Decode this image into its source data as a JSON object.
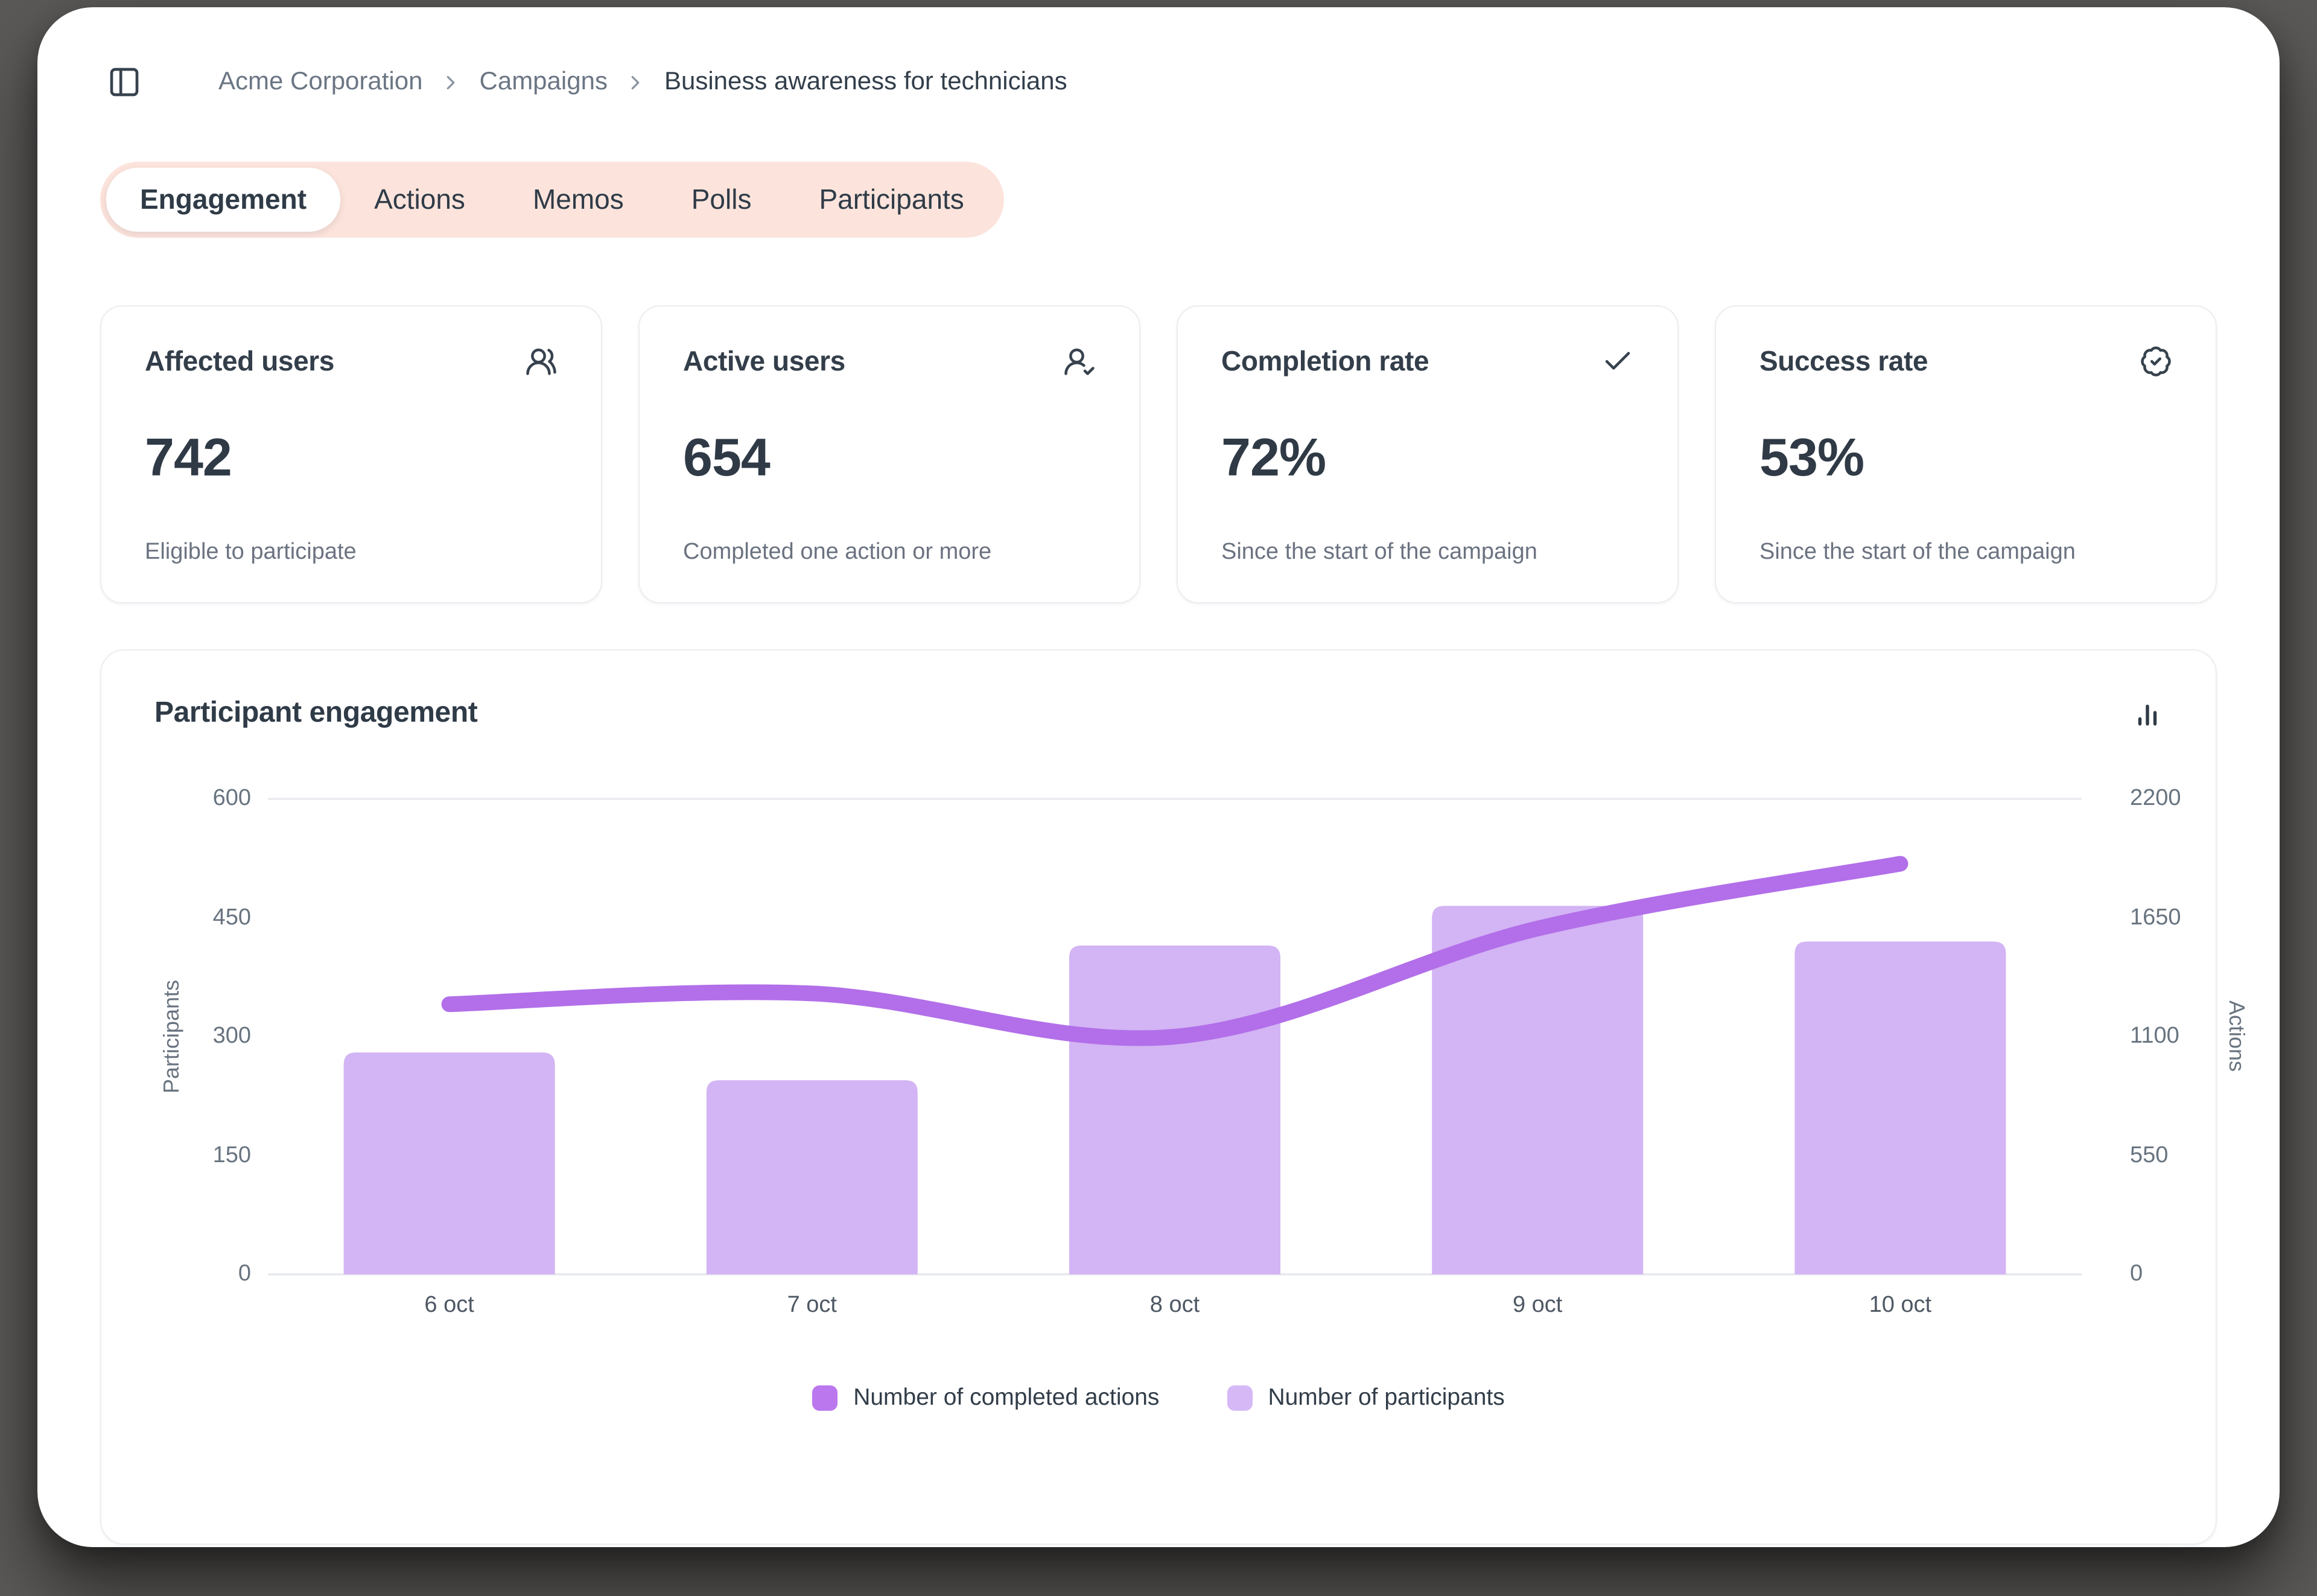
{
  "window": {
    "breadcrumb": {
      "items": [
        "Acme Corporation",
        "Campaigns",
        "Business awareness for technicians"
      ]
    },
    "tabs": {
      "active": "Engagement",
      "items": [
        "Engagement",
        "Actions",
        "Memos",
        "Polls",
        "Participants"
      ]
    },
    "stat_cards": [
      {
        "title": "Affected users",
        "icon": "users-icon",
        "value": "742",
        "caption": "Eligible to participate"
      },
      {
        "title": "Active users",
        "icon": "user-check-icon",
        "value": "654",
        "caption": "Completed one action or more"
      },
      {
        "title": "Completion rate",
        "icon": "check-icon",
        "value": "72%",
        "caption": "Since the start of the campaign"
      },
      {
        "title": "Success rate",
        "icon": "badge-check-icon",
        "value": "53%",
        "caption": "Since the start of the campaign"
      }
    ],
    "chart": {
      "title": "Participant engagement",
      "corner_icon": "bar-chart-icon"
    }
  },
  "colors": {
    "page_background": "#5b5957",
    "tabbar_background": "#fce4dc",
    "bar_fill": "#d3b4f4",
    "line_stroke": "#b26fe9",
    "grid_line": "#e9ebef",
    "dark_text": "#2f3a46",
    "muted_text": "#6b7280"
  },
  "chart_data": {
    "type": "bar",
    "categories": [
      "6 oct",
      "7 oct",
      "8 oct",
      "9 oct",
      "10 oct"
    ],
    "series": [
      {
        "name": "Number of completed actions",
        "type": "line",
        "axis": "right",
        "color": "#b26fe9",
        "legend_color": "#bb77ee",
        "values": [
          1250,
          1300,
          1100,
          1600,
          1900
        ]
      },
      {
        "name": "Number of participants",
        "type": "bar",
        "axis": "left",
        "color": "#d3b4f4",
        "legend_color": "#d6b8f7",
        "values": [
          280,
          245,
          415,
          465,
          420
        ]
      }
    ],
    "left_axis": {
      "label": "Participants",
      "ticks": [
        0,
        150,
        300,
        450,
        600
      ],
      "max": 600
    },
    "right_axis": {
      "label": "Actions",
      "ticks": [
        0,
        550,
        1100,
        1650,
        2200
      ],
      "max": 2200
    },
    "grid": "horizontal line at top (max) and baseline only",
    "legend_position": "bottom"
  }
}
